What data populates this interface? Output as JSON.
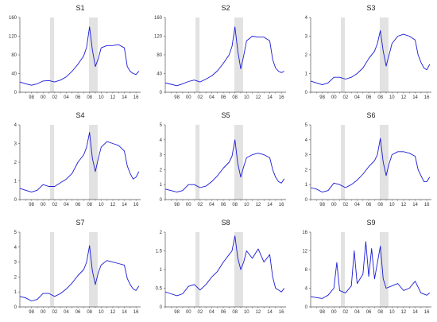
{
  "chart_data": [
    {
      "type": "line",
      "title": "S1",
      "ylim": [
        0,
        160
      ],
      "yticks": [
        0,
        40,
        80,
        120,
        160
      ],
      "x": [
        1996,
        1997,
        1998,
        1999,
        2000,
        2001,
        2002,
        2003,
        2004,
        2005,
        2006,
        2007,
        2007.5,
        2008,
        2008.5,
        2009,
        2009.5,
        2010,
        2011,
        2012,
        2013,
        2014,
        2014.5,
        2015,
        2015.5,
        2016,
        2016.5
      ],
      "values": [
        22,
        18,
        15,
        18,
        24,
        25,
        22,
        26,
        33,
        45,
        60,
        78,
        96,
        140,
        90,
        55,
        72,
        95,
        100,
        100,
        102,
        95,
        55,
        45,
        40,
        38,
        45
      ]
    },
    {
      "type": "line",
      "title": "S2",
      "ylim": [
        0,
        160
      ],
      "yticks": [
        0,
        40,
        80,
        120,
        160
      ],
      "x": [
        1996,
        1997,
        1998,
        1999,
        2000,
        2001,
        2002,
        2003,
        2004,
        2005,
        2006,
        2007,
        2007.5,
        2008,
        2008.5,
        2009,
        2009.5,
        2010,
        2011,
        2012,
        2013,
        2014,
        2014.5,
        2015,
        2015.5,
        2016,
        2016.5
      ],
      "values": [
        20,
        17,
        14,
        18,
        23,
        26,
        22,
        28,
        35,
        46,
        62,
        80,
        98,
        140,
        88,
        50,
        78,
        110,
        120,
        118,
        118,
        110,
        70,
        52,
        45,
        42,
        45
      ]
    },
    {
      "type": "line",
      "title": "S3",
      "ylim": [
        0,
        4
      ],
      "yticks": [
        0,
        1,
        2,
        3,
        4
      ],
      "x": [
        1996,
        1997,
        1998,
        1999,
        2000,
        2001,
        2002,
        2003,
        2004,
        2005,
        2006,
        2007,
        2007.5,
        2008,
        2008.5,
        2009,
        2009.5,
        2010,
        2011,
        2012,
        2013,
        2014,
        2014.5,
        2015,
        2015.5,
        2016,
        2016.5
      ],
      "values": [
        0.6,
        0.5,
        0.4,
        0.5,
        0.8,
        0.8,
        0.7,
        0.8,
        1.0,
        1.3,
        1.8,
        2.2,
        2.6,
        3.3,
        2.2,
        1.4,
        2.0,
        2.6,
        3.0,
        3.1,
        3.0,
        2.8,
        2.0,
        1.6,
        1.3,
        1.2,
        1.5
      ]
    },
    {
      "type": "line",
      "title": "S4",
      "ylim": [
        0,
        4
      ],
      "yticks": [
        0,
        1,
        2,
        3,
        4
      ],
      "x": [
        1996,
        1997,
        1998,
        1999,
        2000,
        2001,
        2002,
        2003,
        2004,
        2005,
        2006,
        2007,
        2007.5,
        2008,
        2008.5,
        2009,
        2009.5,
        2010,
        2011,
        2012,
        2013,
        2014,
        2014.5,
        2015,
        2015.5,
        2016,
        2016.5
      ],
      "values": [
        0.6,
        0.5,
        0.4,
        0.5,
        0.8,
        0.7,
        0.7,
        0.9,
        1.1,
        1.4,
        2.0,
        2.4,
        2.8,
        3.6,
        2.2,
        1.5,
        2.2,
        2.8,
        3.1,
        3.0,
        2.9,
        2.6,
        1.8,
        1.4,
        1.1,
        1.2,
        1.5
      ]
    },
    {
      "type": "line",
      "title": "S5",
      "ylim": [
        0,
        5
      ],
      "yticks": [
        0,
        1,
        2,
        3,
        4,
        5
      ],
      "x": [
        1996,
        1997,
        1998,
        1999,
        2000,
        2001,
        2002,
        2003,
        2004,
        2005,
        2006,
        2007,
        2007.5,
        2008,
        2008.5,
        2009,
        2009.5,
        2010,
        2011,
        2012,
        2013,
        2014,
        2014.5,
        2015,
        2015.5,
        2016,
        2016.5
      ],
      "values": [
        0.7,
        0.6,
        0.5,
        0.6,
        1.0,
        1.0,
        0.8,
        0.9,
        1.2,
        1.6,
        2.1,
        2.5,
        2.9,
        4.0,
        2.4,
        1.5,
        2.2,
        2.8,
        3.0,
        3.1,
        3.0,
        2.8,
        2.0,
        1.5,
        1.2,
        1.1,
        1.4
      ]
    },
    {
      "type": "line",
      "title": "S6",
      "ylim": [
        0,
        5
      ],
      "yticks": [
        0,
        1,
        2,
        3,
        4,
        5
      ],
      "x": [
        1996,
        1997,
        1998,
        1999,
        2000,
        2001,
        2002,
        2003,
        2004,
        2005,
        2006,
        2007,
        2007.5,
        2008,
        2008.5,
        2009,
        2009.5,
        2010,
        2011,
        2012,
        2013,
        2014,
        2014.5,
        2015,
        2015.5,
        2016,
        2016.5
      ],
      "values": [
        0.8,
        0.7,
        0.5,
        0.6,
        1.1,
        1.0,
        0.8,
        1.0,
        1.3,
        1.7,
        2.2,
        2.6,
        3.0,
        4.1,
        2.5,
        1.6,
        2.4,
        3.0,
        3.2,
        3.2,
        3.1,
        2.9,
        2.0,
        1.6,
        1.2,
        1.2,
        1.5
      ]
    },
    {
      "type": "line",
      "title": "S7",
      "ylim": [
        0,
        5
      ],
      "yticks": [
        0,
        1,
        2,
        3,
        4,
        5
      ],
      "x": [
        1996,
        1997,
        1998,
        1999,
        2000,
        2001,
        2002,
        2003,
        2004,
        2005,
        2006,
        2007,
        2007.5,
        2008,
        2008.5,
        2009,
        2009.5,
        2010,
        2011,
        2012,
        2013,
        2014,
        2014.5,
        2015,
        2015.5,
        2016,
        2016.5
      ],
      "values": [
        0.7,
        0.6,
        0.4,
        0.5,
        0.9,
        0.9,
        0.7,
        0.9,
        1.2,
        1.6,
        2.1,
        2.5,
        3.0,
        4.1,
        2.4,
        1.5,
        2.3,
        2.8,
        3.1,
        3.0,
        2.9,
        2.8,
        1.9,
        1.5,
        1.2,
        1.1,
        1.4
      ]
    },
    {
      "type": "line",
      "title": "S8",
      "ylim": [
        0,
        2.0
      ],
      "yticks": [
        0,
        0.5,
        1.0,
        1.5,
        2.0
      ],
      "x": [
        1996,
        1997,
        1998,
        1999,
        2000,
        2001,
        2002,
        2003,
        2004,
        2005,
        2006,
        2007,
        2007.5,
        2008,
        2008.5,
        2009,
        2009.5,
        2010,
        2011,
        2012,
        2013,
        2014,
        2014.5,
        2015,
        2015.5,
        2016,
        2016.5
      ],
      "values": [
        0.4,
        0.35,
        0.3,
        0.35,
        0.55,
        0.6,
        0.45,
        0.6,
        0.8,
        0.95,
        1.2,
        1.4,
        1.5,
        1.9,
        1.3,
        1.0,
        1.2,
        1.5,
        1.3,
        1.55,
        1.2,
        1.4,
        0.8,
        0.5,
        0.45,
        0.4,
        0.5
      ]
    },
    {
      "type": "line",
      "title": "S9",
      "ylim": [
        0,
        16
      ],
      "yticks": [
        0,
        4,
        8,
        12,
        16
      ],
      "x": [
        1996,
        1997,
        1998,
        1999,
        2000,
        2000.5,
        2001,
        2002,
        2003,
        2003.5,
        2004,
        2005,
        2005.5,
        2006,
        2006.5,
        2007,
        2008,
        2008.5,
        2009,
        2010,
        2011,
        2012,
        2013,
        2014,
        2015,
        2016,
        2016.5
      ],
      "values": [
        2.2,
        2.0,
        1.8,
        2.5,
        4.0,
        9.5,
        3.5,
        3.0,
        4.5,
        12.0,
        5.0,
        7.0,
        14.0,
        6.5,
        12.5,
        6.0,
        13.0,
        6.0,
        4.0,
        4.5,
        5.0,
        3.5,
        4.0,
        5.5,
        3.0,
        2.5,
        3.0
      ]
    }
  ],
  "x_tick_labels": [
    "98",
    "00",
    "02",
    "04",
    "06",
    "08",
    "10",
    "12",
    "14",
    "16"
  ],
  "x_ticks": [
    1998,
    2000,
    2002,
    2004,
    2006,
    2008,
    2010,
    2012,
    2014,
    2016
  ],
  "xlim": [
    1996,
    2016.8
  ],
  "shaded_periods": [
    [
      2001.2,
      2001.9
    ],
    [
      2007.9,
      2009.4
    ]
  ],
  "colors": {
    "series": "#1a1ad6",
    "shade": "#e2e2e2"
  }
}
